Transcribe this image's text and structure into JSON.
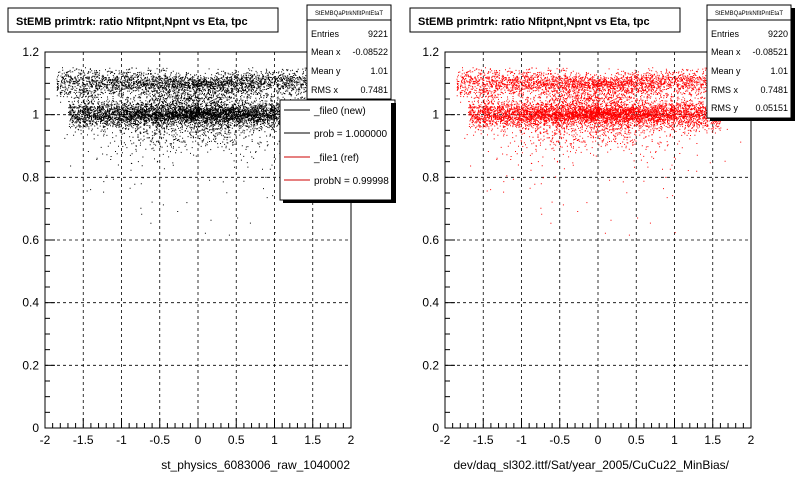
{
  "footer_text": "",
  "chart_data": [
    {
      "type": "scatter",
      "title": "StEMB primtrk: ratio Nfitpnt,Npnt vs Eta, tpc",
      "xlabel": "st_physics_6083006_raw_1040002",
      "ylabel": "",
      "xlim": [
        -2,
        2
      ],
      "ylim": [
        0,
        1.2
      ],
      "xticks": [
        "-2",
        "-1.5",
        "-1",
        "-0.5",
        "0",
        "0.5",
        "1",
        "1.5",
        "2"
      ],
      "yticks": [
        "0",
        "0.2",
        "0.4",
        "0.6",
        "0.8",
        "1",
        "1.2"
      ],
      "grid": true,
      "color": "#000000",
      "stats": {
        "name": "StEMBQaPtrkNfitPntEtaT",
        "rows": [
          {
            "label": "Entries",
            "value": "9221"
          },
          {
            "label": "Mean x",
            "value": "-0.08522"
          },
          {
            "label": "Mean y",
            "value": "1.01"
          },
          {
            "label": "RMS x",
            "value": "0.7481"
          }
        ]
      },
      "legend": {
        "placement": "right",
        "entries": [
          {
            "label": "_file0 (new)",
            "color": "#000000"
          },
          {
            "label": "prob = 1.000000",
            "color": "#000000"
          },
          {
            "label": "_file1 (ref)",
            "color": "#cc0000"
          },
          {
            "label": "probN = 0.99998",
            "color": "#cc0000"
          }
        ]
      },
      "bands": [
        {
          "y": 1.0,
          "xmin": -1.7,
          "xmax": 1.6,
          "sigma": 0.012,
          "weight": 0.45
        },
        {
          "y": 1.1,
          "xmin": -1.85,
          "xmax": 1.6,
          "sigma": 0.012,
          "weight": 0.25
        },
        {
          "y": 1.02,
          "xmin": -1.6,
          "xmax": 1.5,
          "sigma": 0.05,
          "weight": 0.3
        }
      ],
      "n_points": 9221
    },
    {
      "type": "scatter",
      "title": "StEMB primtrk: ratio Nfitpnt,Npnt vs Eta, tpc",
      "xlabel": "dev/daq_sl302.ittf/Sat/year_2005/CuCu22_MinBias/",
      "ylabel": "",
      "xlim": [
        -2,
        2
      ],
      "ylim": [
        0,
        1.2
      ],
      "xticks": [
        "-2",
        "-1.5",
        "-1",
        "-0.5",
        "0",
        "0.5",
        "1",
        "1.5",
        "2"
      ],
      "yticks": [
        "0",
        "0.2",
        "0.4",
        "0.6",
        "0.8",
        "1",
        "1.2"
      ],
      "grid": true,
      "color": "#ff0000",
      "stats": {
        "name": "StEMBQaPtrkNfitPntEtaT",
        "rows": [
          {
            "label": "Entries",
            "value": "9220"
          },
          {
            "label": "Mean x",
            "value": "-0.08521"
          },
          {
            "label": "Mean y",
            "value": "1.01"
          },
          {
            "label": "RMS x",
            "value": "0.7481"
          },
          {
            "label": "RMS y",
            "value": "0.05151"
          }
        ]
      },
      "bands": [
        {
          "y": 1.0,
          "xmin": -1.7,
          "xmax": 1.6,
          "sigma": 0.012,
          "weight": 0.45
        },
        {
          "y": 1.1,
          "xmin": -1.85,
          "xmax": 1.6,
          "sigma": 0.012,
          "weight": 0.25
        },
        {
          "y": 1.02,
          "xmin": -1.6,
          "xmax": 1.5,
          "sigma": 0.05,
          "weight": 0.3
        }
      ],
      "n_points": 9220
    }
  ]
}
